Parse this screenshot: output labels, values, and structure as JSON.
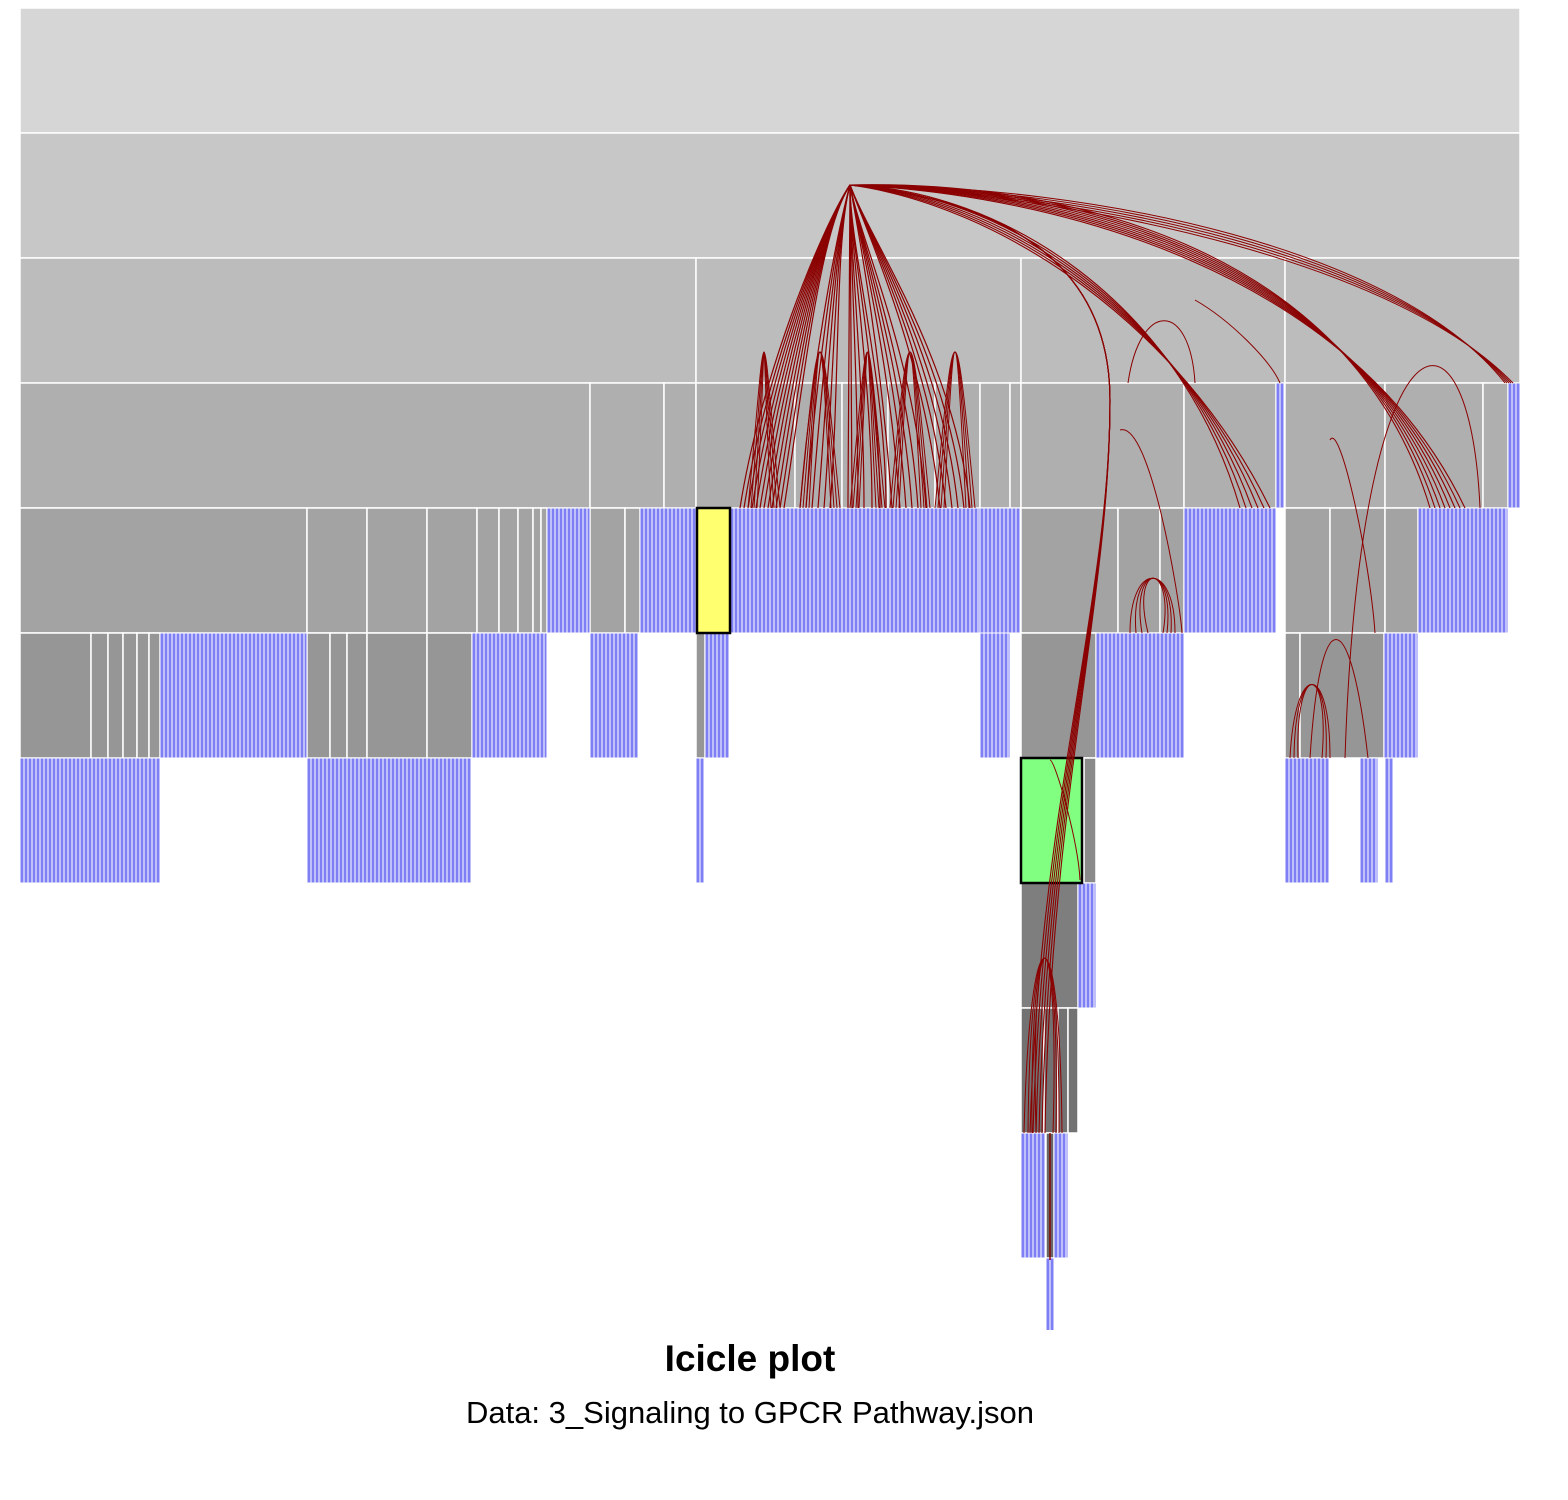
{
  "caption": {
    "title": "Icicle plot",
    "subtitle": "Data: 3_Signaling to GPCR Pathway.json"
  },
  "colors": {
    "level_fills": [
      "#d6d6d6",
      "#c7c7c7",
      "#bcbcbc",
      "#afafaf",
      "#a3a3a3",
      "#969696",
      "#8a8a8a",
      "#7e7e7e",
      "#727272",
      "#666666",
      "#5a5a5a"
    ],
    "leaf_fill": "#7f7ff5",
    "node_border": "#ffffff",
    "edge_stroke": "#8b0000",
    "highlight_source": "#ffff70",
    "highlight_target": "#80ff80"
  },
  "chart_data": {
    "type": "icicle",
    "depth_levels": 11,
    "highlighted_nodes": [
      {
        "role": "source",
        "color": "#ffff70"
      },
      {
        "role": "target",
        "color": "#80ff80"
      }
    ],
    "edges": "hierarchical edge bundles drawn as dark red curves"
  }
}
